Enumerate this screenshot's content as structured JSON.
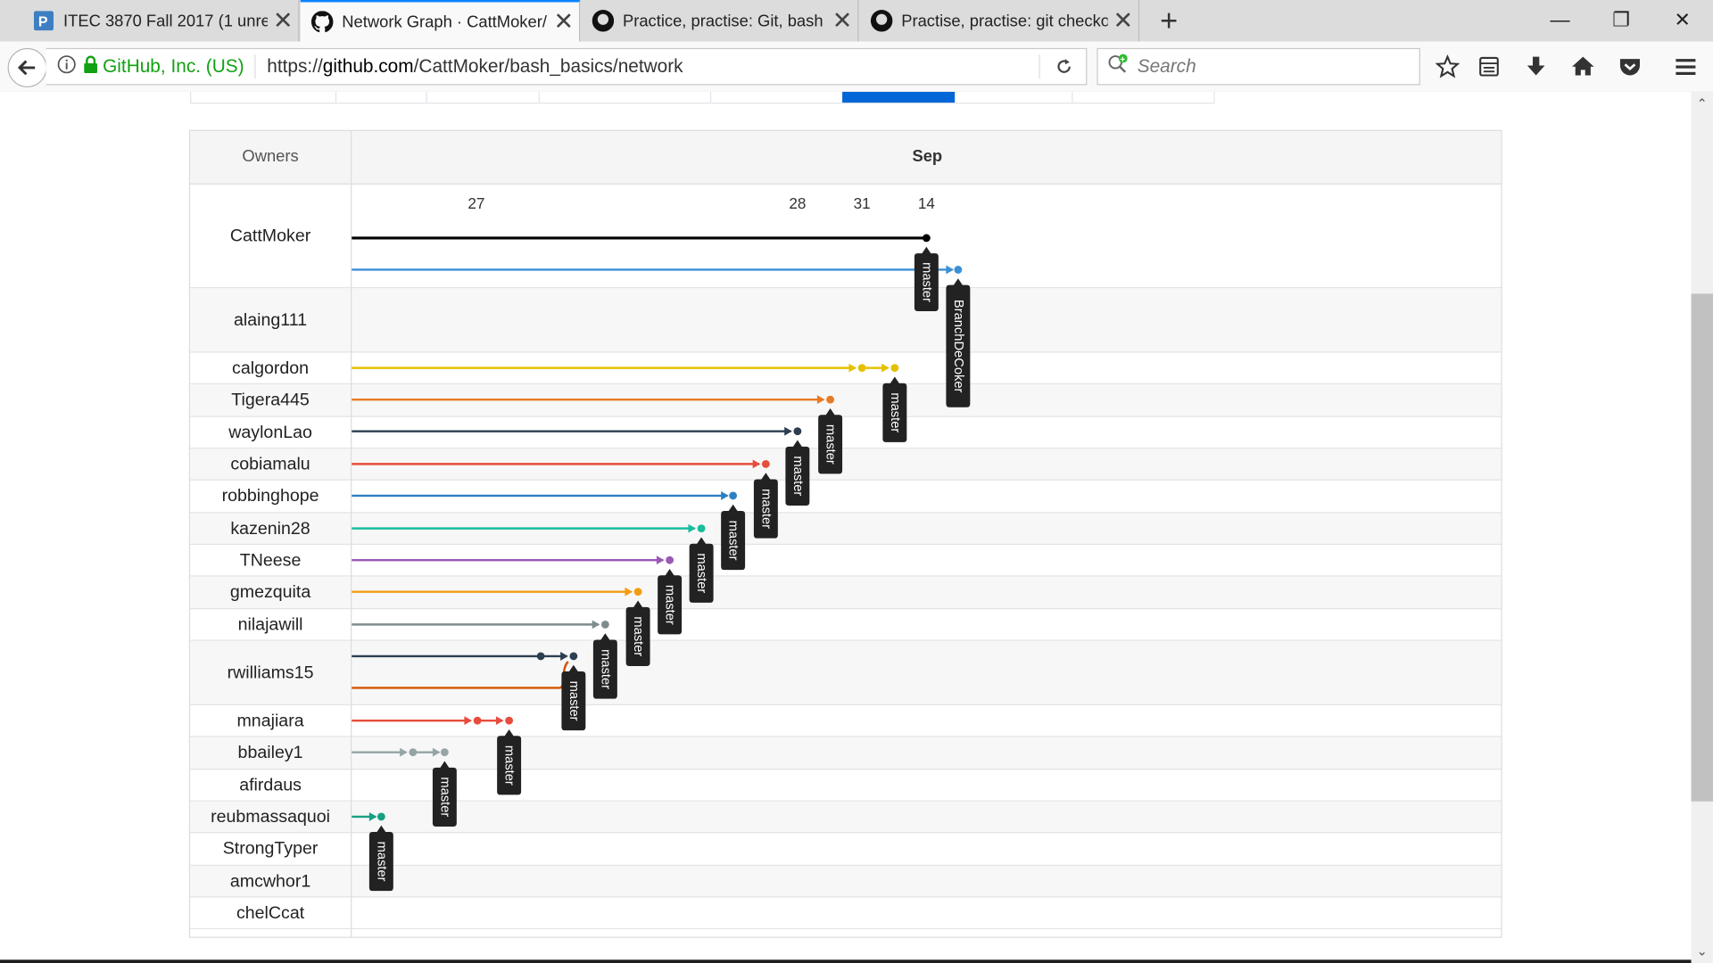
{
  "browser": {
    "tabs": [
      {
        "label": "ITEC 3870 Fall 2017 (1 unrea",
        "icon": "piazza-icon",
        "active": false
      },
      {
        "label": "Network Graph · CattMoker/",
        "icon": "github-icon",
        "active": true
      },
      {
        "label": "Practice, practise: Git, bash ·",
        "icon": "github-icon",
        "active": false
      },
      {
        "label": "Practise, practise: git checko",
        "icon": "github-icon",
        "active": false
      }
    ],
    "identity": "GitHub, Inc. (US)",
    "url_prefix": "https://",
    "url_host": "github.com",
    "url_path": "/CattMoker/bash_basics/network",
    "search_placeholder": "Search"
  },
  "graph": {
    "owners_label": "Owners",
    "month_label": "Sep",
    "dates": [
      "27",
      "28",
      "31",
      "14"
    ],
    "owners": [
      "CattMoker",
      "alaing111",
      "calgordon",
      "Tigera445",
      "waylonLao",
      "cobiamalu",
      "robbinghope",
      "kazenin28",
      "TNeese",
      "gmezquita",
      "nilajawill",
      "rwilliams15",
      "mnajiara",
      "bbailey1",
      "afirdaus",
      "reubmassaquoi",
      "StrongTyper",
      "amcwhor1",
      "chelCcat"
    ],
    "branch_labels": {
      "master": "master",
      "branch": "BranchDeCoker"
    },
    "colors": {
      "CattMoker": "#000000",
      "CattMoker_branch": "#3b8fd4",
      "calgordon": "#e5c000",
      "Tigera445": "#e87a22",
      "waylonLao": "#2c3e50",
      "cobiamalu": "#e74c3c",
      "robbinghope": "#2f7fc1",
      "kazenin28": "#1abc9c",
      "TNeese": "#9b59b6",
      "gmezquita": "#f39c12",
      "nilajawill": "#7f8c8d",
      "rwilliams15": "#2c3e50",
      "rwilliams15_b": "#d35400",
      "mnajiara": "#e74c3c",
      "bbailey1": "#95a5a6",
      "reubmassaquoi": "#16a085"
    }
  }
}
